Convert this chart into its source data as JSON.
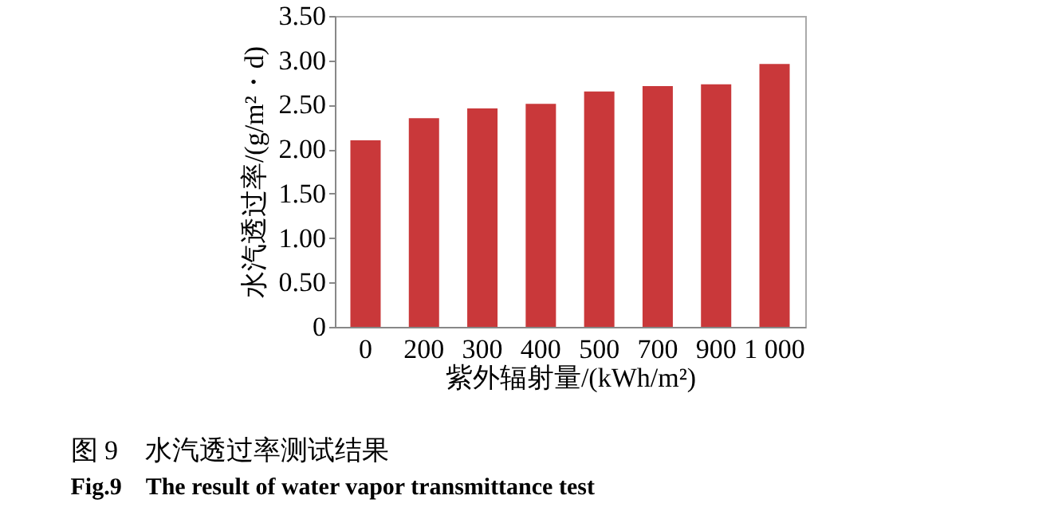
{
  "chart_data": {
    "type": "bar",
    "title": "图 9　水汽透过率测试结果",
    "subtitle": "Fig.9　The result of water vapor transmittance test",
    "xlabel": "紫外辐射量/(kWh/m²)",
    "ylabel": "水汽透过率/(g/m²・d)",
    "categories": [
      "0",
      "200",
      "300",
      "400",
      "500",
      "700",
      "900",
      "1 000"
    ],
    "values": [
      2.1,
      2.35,
      2.46,
      2.51,
      2.65,
      2.71,
      2.73,
      2.96
    ],
    "color": "#c9383a",
    "ylim": [
      0,
      3.5
    ],
    "yticks": [
      {
        "value": 0,
        "label": "0"
      },
      {
        "value": 0.5,
        "label": "0.50"
      },
      {
        "value": 1,
        "label": "1.00"
      },
      {
        "value": 1.5,
        "label": "1.50"
      },
      {
        "value": 2,
        "label": "2.00"
      },
      {
        "value": 2.5,
        "label": "2.50"
      },
      {
        "value": 3,
        "label": "3.00"
      },
      {
        "value": 3.5,
        "label": "3.50"
      }
    ],
    "grid": false
  }
}
